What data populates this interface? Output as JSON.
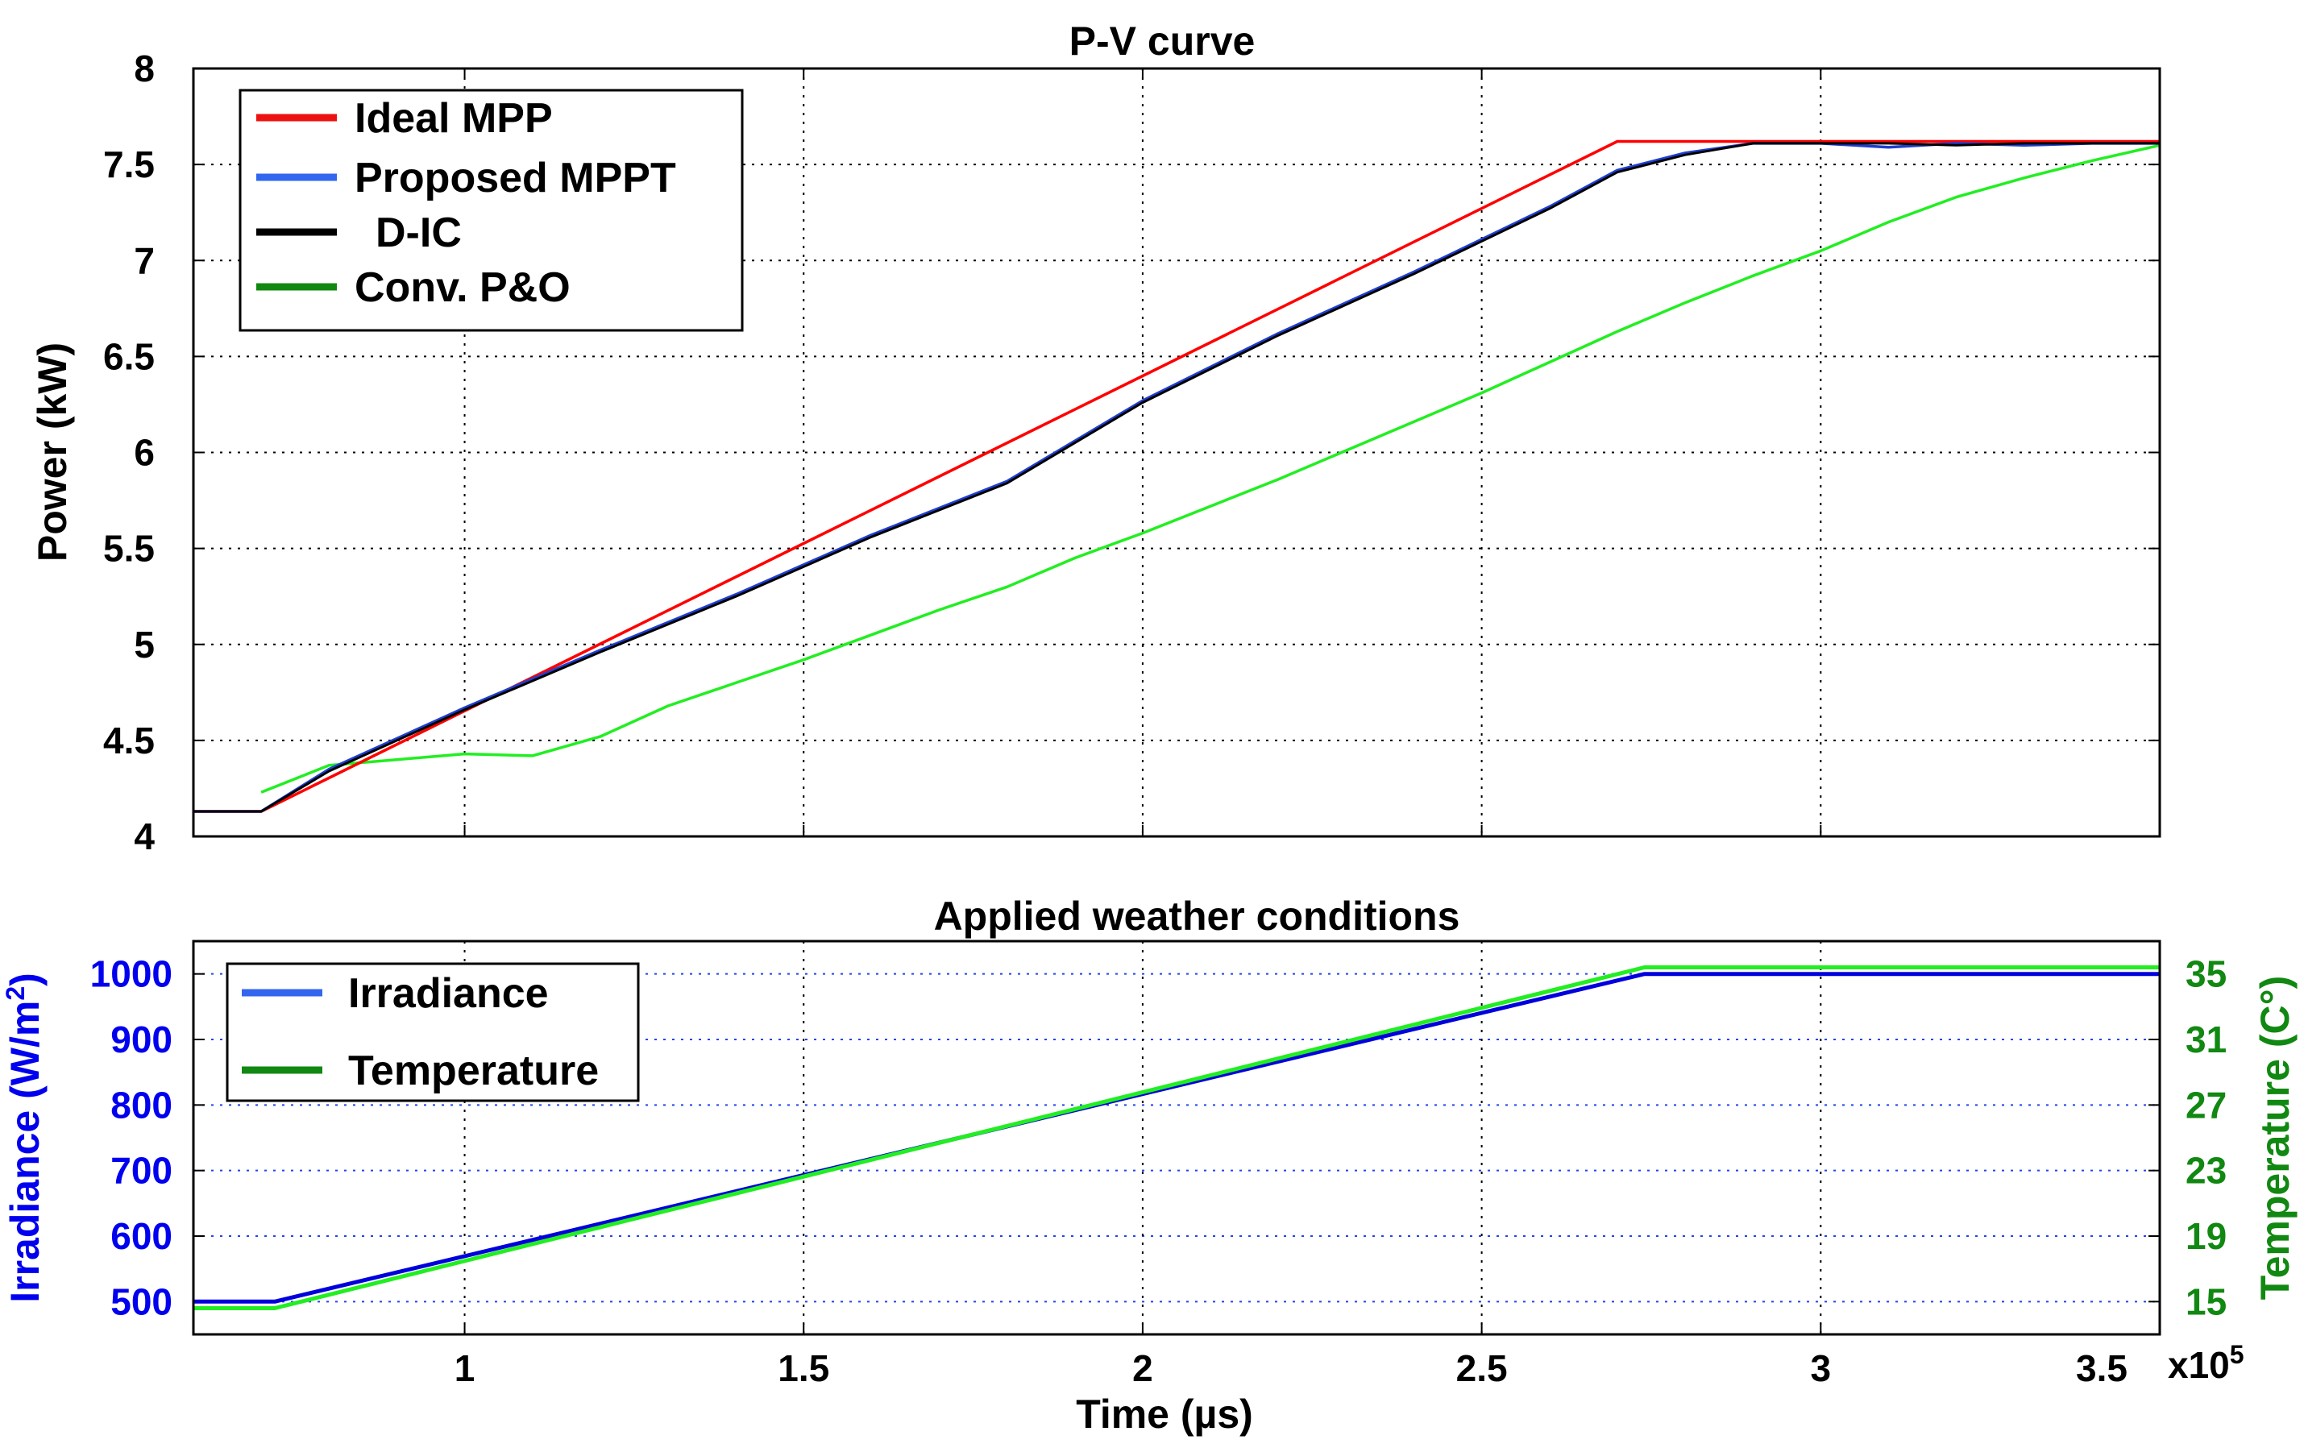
{
  "chart_data": [
    {
      "type": "line",
      "title": "P-V curve",
      "xlabel": "",
      "ylabel": "Power (kW)",
      "xlim": [
        0.6,
        3.5
      ],
      "ylim": [
        4,
        8
      ],
      "x_ticks": [
        "1",
        "1.5",
        "2",
        "2.5",
        "3"
      ],
      "y_ticks": [
        "4",
        "4.5",
        "5",
        "5.5",
        "6",
        "6.5",
        "7",
        "7.5",
        "8"
      ],
      "grid": true,
      "legend_position": "top-left",
      "series": [
        {
          "name": "Ideal MPP",
          "color": "#ff0000",
          "legend_color": "#ee1111",
          "x": [
            0.6,
            0.7,
            2.7,
            3.5
          ],
          "y": [
            4.13,
            4.13,
            7.62,
            7.62
          ]
        },
        {
          "name": "Proposed MPPT",
          "color": "#1f3fd0",
          "legend_color": "#3366ee",
          "x": [
            0.6,
            0.7,
            0.8,
            1.0,
            1.2,
            1.4,
            1.6,
            1.8,
            2.0,
            2.2,
            2.4,
            2.6,
            2.7,
            2.8,
            2.9,
            3.0,
            3.1,
            3.2,
            3.3,
            3.4,
            3.5
          ],
          "y": [
            4.13,
            4.13,
            4.35,
            4.67,
            4.97,
            5.26,
            5.57,
            5.85,
            6.27,
            6.62,
            6.94,
            7.28,
            7.47,
            7.56,
            7.61,
            7.61,
            7.59,
            7.61,
            7.6,
            7.61,
            7.61
          ]
        },
        {
          "name": "D-IC",
          "color": "#000000",
          "legend_color": "#000000",
          "x": [
            0.6,
            0.7,
            0.8,
            1.0,
            1.2,
            1.4,
            1.6,
            1.8,
            2.0,
            2.2,
            2.4,
            2.6,
            2.7,
            2.8,
            2.9,
            3.0,
            3.1,
            3.2,
            3.3,
            3.4,
            3.5
          ],
          "y": [
            4.13,
            4.13,
            4.34,
            4.66,
            4.96,
            5.25,
            5.56,
            5.84,
            6.26,
            6.61,
            6.93,
            7.27,
            7.46,
            7.55,
            7.61,
            7.61,
            7.61,
            7.6,
            7.61,
            7.61,
            7.61
          ]
        },
        {
          "name": "Conv. P&O",
          "color": "#22ee22",
          "legend_color": "#118811",
          "x": [
            0.7,
            0.8,
            0.9,
            1.0,
            1.1,
            1.2,
            1.3,
            1.4,
            1.5,
            1.6,
            1.7,
            1.8,
            1.9,
            2.0,
            2.1,
            2.2,
            2.3,
            2.4,
            2.5,
            2.6,
            2.7,
            2.8,
            2.9,
            3.0,
            3.1,
            3.2,
            3.3,
            3.4,
            3.5
          ],
          "y": [
            4.23,
            4.37,
            4.4,
            4.43,
            4.42,
            4.52,
            4.68,
            4.8,
            4.92,
            5.05,
            5.18,
            5.3,
            5.45,
            5.58,
            5.72,
            5.86,
            6.01,
            6.16,
            6.31,
            6.47,
            6.63,
            6.78,
            6.92,
            7.05,
            7.2,
            7.33,
            7.43,
            7.52,
            7.6
          ]
        }
      ]
    },
    {
      "type": "line",
      "title": "Applied weather conditions",
      "xlabel": "Time (µs)",
      "x_multiplier": "x10⁵",
      "x_multiplier_base": "x10",
      "x_multiplier_exp": "5",
      "xlim": [
        0.6,
        3.5
      ],
      "x_ticks": [
        "1",
        "1.5",
        "2",
        "2.5",
        "3",
        "3.5"
      ],
      "ylabel_left": "Irradiance (W/m²)",
      "ylabel_left_base": "Irradiance (W/m",
      "ylabel_left_sup": "2",
      "ylabel_left_end": ")",
      "ylim_left": [
        450,
        1050
      ],
      "y_ticks_left": [
        "500",
        "600",
        "700",
        "800",
        "900",
        "1000"
      ],
      "ylabel_right": "Temperature (C°)",
      "ylim_right": [
        13,
        37
      ],
      "y_ticks_right": [
        "15",
        "19",
        "23",
        "27",
        "31",
        "35"
      ],
      "left_axis_color": "#0000ee",
      "right_axis_color": "#118811",
      "grid": true,
      "legend_position": "top-left",
      "series": [
        {
          "name": "Irradiance",
          "axis": "left",
          "color": "#0000dd",
          "legend_color": "#3366ee",
          "x": [
            0.6,
            0.72,
            2.74,
            3.5
          ],
          "y": [
            500,
            500,
            1000,
            1000
          ]
        },
        {
          "name": "Temperature",
          "axis": "right",
          "color": "#22ee22",
          "legend_color": "#118811",
          "x": [
            0.6,
            0.72,
            2.74,
            3.5
          ],
          "y": [
            14.6,
            14.6,
            35.4,
            35.4
          ]
        }
      ]
    }
  ]
}
